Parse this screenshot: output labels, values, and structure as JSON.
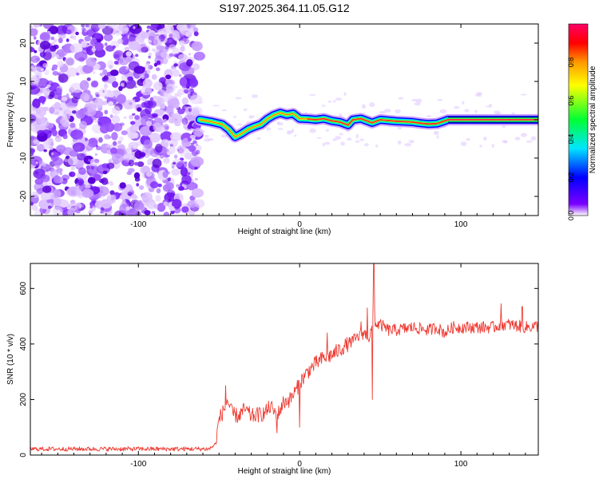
{
  "figure_title": "S197.2025.364.11.05.G12",
  "chart_data": [
    {
      "type": "heatmap",
      "title": "S197.2025.364.11.05.G12",
      "xlabel": "Height of straight line (km)",
      "ylabel": "Frequency (Hz)",
      "xlim": [
        -167,
        148
      ],
      "ylim": [
        -25,
        25
      ],
      "x_ticks": [
        -100,
        0,
        100
      ],
      "x_tick_labels": [
        "-100",
        "0",
        "100"
      ],
      "y_ticks": [
        -20,
        -10,
        0,
        10,
        20
      ],
      "y_tick_labels": [
        "-20",
        "-10",
        "0",
        "10",
        "20"
      ],
      "noise_region_x": [
        -167,
        -62
      ],
      "signal_start_x": -62,
      "frequency_ridge": {
        "x": [
          -62,
          -55,
          -48,
          -44,
          -40,
          -36,
          -32,
          -28,
          -24,
          -20,
          -16,
          -12,
          -8,
          -4,
          0,
          5,
          10,
          15,
          20,
          25,
          30,
          33,
          38,
          45,
          50,
          60,
          70,
          75,
          80,
          85,
          88,
          92,
          100,
          110,
          120,
          130,
          140,
          148
        ],
        "y": [
          0,
          -0.5,
          -1.2,
          -2.5,
          -4.5,
          -3.6,
          -2.5,
          -1.8,
          -1.2,
          0.2,
          1.2,
          1.8,
          1.3,
          1.6,
          0.3,
          0.2,
          0.0,
          0.3,
          -0.3,
          -0.6,
          -1.4,
          0.0,
          0.3,
          -0.8,
          0.0,
          -0.4,
          -0.6,
          -0.9,
          -1.1,
          -1.0,
          -0.6,
          0.0,
          0.0,
          0.0,
          0.0,
          0.0,
          0.0,
          0.0
        ]
      },
      "colorbar": {
        "label": "Normalized spectral amplitude",
        "range": [
          0,
          1
        ],
        "ticks": [
          0.0,
          0.2,
          0.4,
          0.6,
          0.8
        ],
        "tick_labels": [
          "0.0",
          "0.2",
          "0.4",
          "0.6",
          "0.8"
        ],
        "colors": [
          "#ffffff",
          "#7a00ff",
          "#0000ff",
          "#00e5ff",
          "#00ff33",
          "#ffff00",
          "#ff9900",
          "#ff0000",
          "#ff0066"
        ]
      }
    },
    {
      "type": "line",
      "xlabel": "Height of straight line (km)",
      "ylabel": "SNR (10 * v/v)",
      "xlim": [
        -167,
        148
      ],
      "ylim": [
        0,
        690
      ],
      "x_ticks": [
        -100,
        0,
        100
      ],
      "x_tick_labels": [
        "-100",
        "0",
        "100"
      ],
      "y_ticks": [
        0,
        200,
        400,
        600
      ],
      "y_tick_labels": [
        "0",
        "200",
        "400",
        "600"
      ],
      "color": "#ee3a32",
      "series": [
        {
          "name": "SNR",
          "x": [
            -167,
            -130,
            -100,
            -70,
            -56,
            -52,
            -50,
            -47,
            -45,
            -42,
            -38,
            -34,
            -30,
            -26,
            -22,
            -18,
            -14,
            -10,
            -6,
            -2,
            0,
            5,
            10,
            15,
            20,
            25,
            30,
            35,
            40,
            43,
            45,
            46,
            47,
            50,
            55,
            60,
            70,
            80,
            85,
            90,
            95,
            100,
            110,
            120,
            125,
            130,
            140,
            148
          ],
          "y": [
            22,
            22,
            22,
            22,
            22,
            40,
            130,
            160,
            200,
            150,
            140,
            165,
            140,
            145,
            150,
            175,
            140,
            190,
            200,
            235,
            260,
            300,
            330,
            350,
            360,
            380,
            400,
            420,
            440,
            420,
            460,
            560,
            470,
            470,
            450,
            450,
            460,
            450,
            460,
            440,
            460,
            460,
            460,
            460,
            470,
            470,
            460,
            465
          ]
        }
      ],
      "spikes": [
        {
          "x": -46,
          "y": 250
        },
        {
          "x": -14,
          "y": 80
        },
        {
          "x": 0,
          "y": 100
        },
        {
          "x": 17,
          "y": 440
        },
        {
          "x": 38,
          "y": 480
        },
        {
          "x": 42,
          "y": 530
        },
        {
          "x": 45,
          "y": 200
        },
        {
          "x": 46,
          "y": 690
        },
        {
          "x": 125,
          "y": 545
        },
        {
          "x": 138,
          "y": 535
        }
      ]
    }
  ]
}
